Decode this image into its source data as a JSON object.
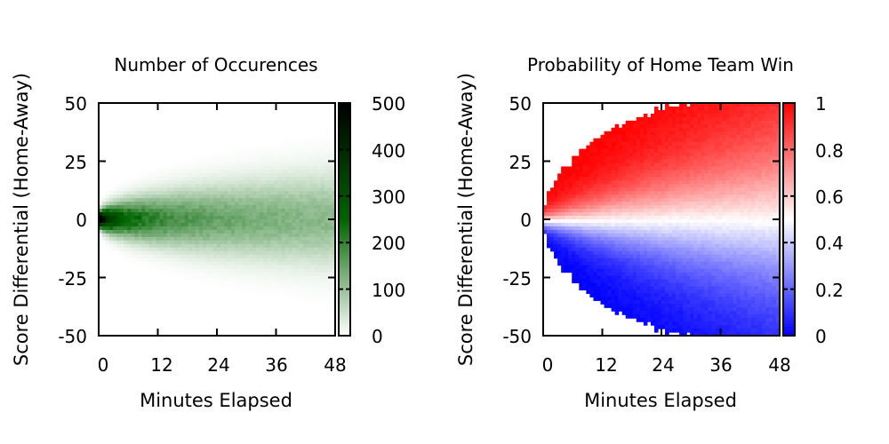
{
  "chart_data": [
    {
      "type": "heatmap",
      "title": "Number of Occurences",
      "xlabel": "Minutes Elapsed",
      "ylabel": "Score Differential (Home-Away)",
      "x_range": [
        0,
        48
      ],
      "y_range": [
        -50,
        50
      ],
      "x_ticks": [
        "0",
        "12",
        "24",
        "36",
        "48"
      ],
      "y_ticks": [
        "50",
        "25",
        "0",
        "-25",
        "-50"
      ],
      "colorbar": {
        "min": 0,
        "max": 500,
        "ticks": [
          "500",
          "400",
          "300",
          "200",
          "100",
          "0"
        ],
        "colors": [
          "#ffffff",
          "#006400",
          "#000000"
        ]
      },
      "grid": false,
      "model": "count peaks at score differential 0; spread widens with minutes elapsed",
      "spread_sd": {
        "at_0_min": 1.5,
        "at_48_min": 13
      }
    },
    {
      "type": "heatmap",
      "title": "Probability of Home Team Win",
      "xlabel": "Minutes Elapsed",
      "ylabel": "Score Differential (Home-Away)",
      "x_range": [
        0,
        48
      ],
      "y_range": [
        -50,
        50
      ],
      "x_ticks": [
        "0",
        "12",
        "24",
        "36",
        "48"
      ],
      "y_ticks": [
        "50",
        "25",
        "0",
        "-25",
        "-50"
      ],
      "colorbar": {
        "min": 0,
        "max": 1,
        "ticks": [
          "1",
          "0.8",
          "0.6",
          "0.4",
          "0.2",
          "0"
        ],
        "colors": [
          "#0000ff",
          "#ffffff",
          "#ff0000"
        ]
      },
      "grid": false,
      "model": "probability 0.5 near differential 0 at start; data present only within observed range",
      "coverage_limit": {
        "at_0_min": 1,
        "at_12_min": 37,
        "at_24_min": 48,
        "at_36_min": 52,
        "at_48_min": 52
      }
    }
  ]
}
